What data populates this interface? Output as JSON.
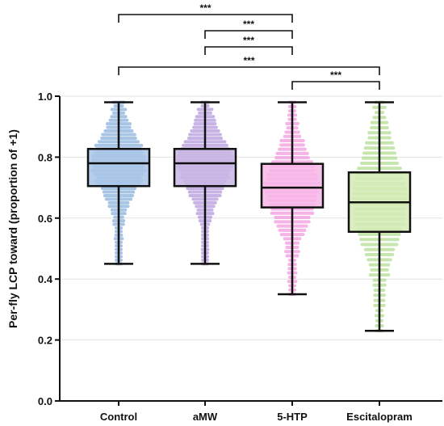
{
  "chart_data": {
    "type": "box",
    "ylabel": "Per-fly LCP toward (proportion of +1)",
    "xlabel": "",
    "ylim": [
      0,
      1.0
    ],
    "yticks": [
      "0.0",
      "0.2",
      "0.4",
      "0.6",
      "0.8",
      "1.0"
    ],
    "grid": "horizontal",
    "categories": [
      "Control",
      "aMW",
      "5-HTP",
      "Escitalopram"
    ],
    "boxes": [
      {
        "category": "Control",
        "min": 0.45,
        "q1": 0.705,
        "median": 0.78,
        "q3": 0.827,
        "max": 0.98,
        "color": "#a9c6e8",
        "point_color": "#7aa6d8"
      },
      {
        "category": "aMW",
        "min": 0.45,
        "q1": 0.705,
        "median": 0.78,
        "q3": 0.827,
        "max": 0.98,
        "color": "#c9b6e4",
        "point_color": "#a98ad6"
      },
      {
        "category": "5-HTP",
        "min": 0.35,
        "q1": 0.635,
        "median": 0.7,
        "q3": 0.778,
        "max": 0.98,
        "color": "#f7b6e6",
        "point_color": "#f08ad8"
      },
      {
        "category": "Escitalopram",
        "min": 0.23,
        "q1": 0.555,
        "median": 0.652,
        "q3": 0.75,
        "max": 0.98,
        "color": "#d3ebb5",
        "point_color": "#a9d882"
      }
    ],
    "comparisons": [
      {
        "from": "Control",
        "to": "5-HTP",
        "label": "***"
      },
      {
        "from": "aMW",
        "to": "5-HTP",
        "label": "***"
      },
      {
        "from": "aMW",
        "to": "5-HTP",
        "label": "***"
      },
      {
        "from": "Control",
        "to": "Escitalopram",
        "label": "***"
      },
      {
        "from": "5-HTP",
        "to": "Escitalopram",
        "label": "***"
      }
    ]
  }
}
